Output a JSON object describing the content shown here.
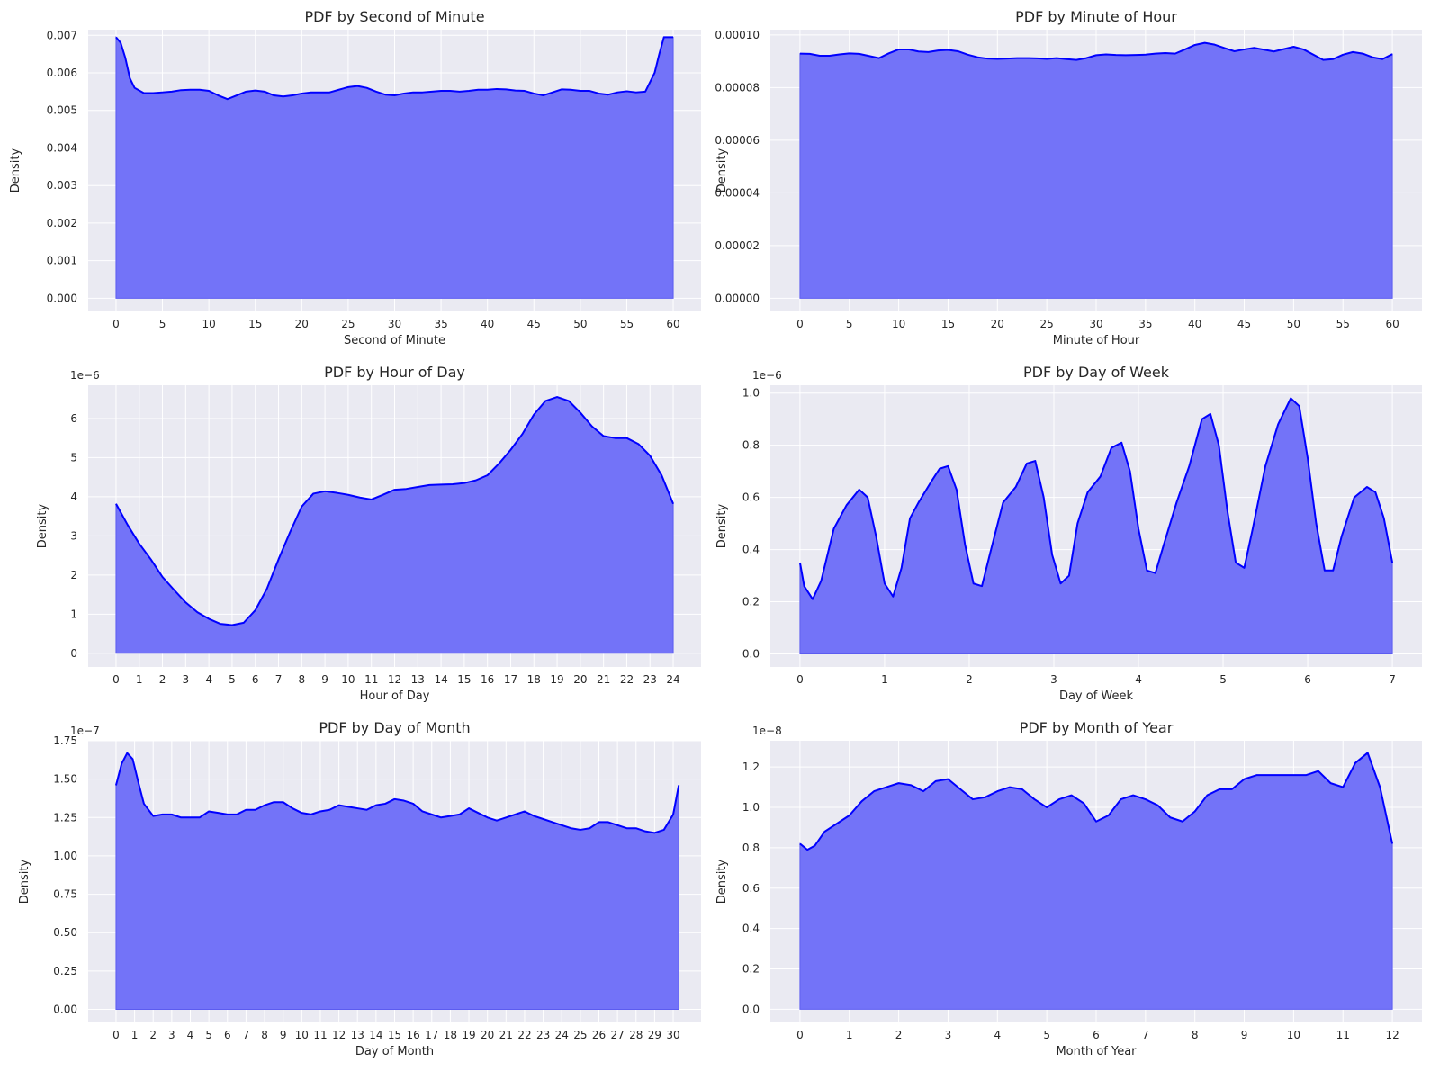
{
  "colors": {
    "line": "#0000ff",
    "fill": "#7373f8",
    "panel_bg": "#eaeaf2",
    "grid": "#ffffff",
    "text": "#262626"
  },
  "chart_data": [
    {
      "type": "area",
      "title": "PDF by Second of Minute",
      "xlabel": "Second of Minute",
      "ylabel": "Density",
      "offset_label": "",
      "xlim": [
        -3,
        63
      ],
      "ylim": [
        -0.00035,
        0.00715
      ],
      "xticks": [
        0,
        5,
        10,
        15,
        20,
        25,
        30,
        35,
        40,
        45,
        50,
        55,
        60
      ],
      "yticks": [
        0,
        0.001,
        0.002,
        0.003,
        0.004,
        0.005,
        0.006,
        0.007
      ],
      "ytick_labels": [
        "0.000",
        "0.001",
        "0.002",
        "0.003",
        "0.004",
        "0.005",
        "0.006",
        "0.007"
      ],
      "grid": true,
      "x": [
        0,
        0.5,
        1,
        1.5,
        2,
        3,
        4,
        5,
        6,
        7,
        8,
        9,
        10,
        11,
        12,
        13,
        14,
        15,
        16,
        17,
        18,
        19,
        20,
        21,
        22,
        23,
        24,
        25,
        26,
        27,
        28,
        29,
        30,
        31,
        32,
        33,
        34,
        35,
        36,
        37,
        38,
        39,
        40,
        41,
        42,
        43,
        44,
        45,
        46,
        47,
        48,
        49,
        50,
        51,
        52,
        53,
        54,
        55,
        56,
        57,
        58,
        58.5,
        59,
        59.5,
        60
      ],
      "y": [
        0.00695,
        0.0068,
        0.0064,
        0.00585,
        0.0056,
        0.00546,
        0.00546,
        0.00548,
        0.0055,
        0.00554,
        0.00555,
        0.00555,
        0.00552,
        0.0054,
        0.0053,
        0.0054,
        0.0055,
        0.00553,
        0.0055,
        0.0054,
        0.00537,
        0.0054,
        0.00545,
        0.00548,
        0.00548,
        0.00548,
        0.00555,
        0.00562,
        0.00565,
        0.0056,
        0.0055,
        0.00542,
        0.0054,
        0.00545,
        0.00548,
        0.00548,
        0.0055,
        0.00552,
        0.00552,
        0.0055,
        0.00552,
        0.00555,
        0.00555,
        0.00557,
        0.00556,
        0.00553,
        0.00552,
        0.00545,
        0.0054,
        0.00548,
        0.00556,
        0.00555,
        0.00552,
        0.00552,
        0.00545,
        0.00542,
        0.00548,
        0.00551,
        0.00548,
        0.0055,
        0.006,
        0.0065,
        0.00695,
        0.00695,
        0.00695
      ]
    },
    {
      "type": "area",
      "title": "PDF by Minute of Hour",
      "xlabel": "Minute of Hour",
      "ylabel": "Density",
      "offset_label": "",
      "xlim": [
        -3,
        63
      ],
      "ylim": [
        -5e-06,
        0.000102
      ],
      "xticks": [
        0,
        5,
        10,
        15,
        20,
        25,
        30,
        35,
        40,
        45,
        50,
        55,
        60
      ],
      "yticks": [
        0,
        2e-05,
        4e-05,
        6e-05,
        8e-05,
        0.0001
      ],
      "ytick_labels": [
        "0.00000",
        "0.00002",
        "0.00004",
        "0.00006",
        "0.00008",
        "0.00010"
      ],
      "grid": true,
      "x": [
        0,
        1,
        2,
        3,
        4,
        5,
        6,
        7,
        8,
        9,
        10,
        11,
        12,
        13,
        14,
        15,
        16,
        17,
        18,
        19,
        20,
        21,
        22,
        23,
        24,
        25,
        26,
        27,
        28,
        29,
        30,
        31,
        32,
        33,
        34,
        35,
        36,
        37,
        38,
        39,
        40,
        41,
        42,
        43,
        44,
        45,
        46,
        47,
        48,
        49,
        50,
        51,
        52,
        53,
        54,
        55,
        56,
        57,
        58,
        59,
        60
      ],
      "y": [
        9.29e-05,
        9.28e-05,
        9.21e-05,
        9.21e-05,
        9.26e-05,
        9.3e-05,
        9.28e-05,
        9.2e-05,
        9.12e-05,
        9.3e-05,
        9.45e-05,
        9.45e-05,
        9.37e-05,
        9.35e-05,
        9.41e-05,
        9.43e-05,
        9.38e-05,
        9.25e-05,
        9.15e-05,
        9.1e-05,
        9.09e-05,
        9.1e-05,
        9.12e-05,
        9.12e-05,
        9.11e-05,
        9.09e-05,
        9.12e-05,
        9.08e-05,
        9.05e-05,
        9.12e-05,
        9.23e-05,
        9.26e-05,
        9.24e-05,
        9.23e-05,
        9.24e-05,
        9.25e-05,
        9.29e-05,
        9.31e-05,
        9.29e-05,
        9.45e-05,
        9.62e-05,
        9.7e-05,
        9.63e-05,
        9.5e-05,
        9.38e-05,
        9.45e-05,
        9.51e-05,
        9.44e-05,
        9.37e-05,
        9.46e-05,
        9.55e-05,
        9.45e-05,
        9.25e-05,
        9.05e-05,
        9.08e-05,
        9.25e-05,
        9.35e-05,
        9.29e-05,
        9.15e-05,
        9.08e-05,
        9.27e-05
      ]
    },
    {
      "type": "area",
      "title": "PDF by Hour of Day",
      "xlabel": "Hour of Day",
      "ylabel": "Density",
      "offset_label": "1e−6",
      "xlim": [
        -1.2,
        25.2
      ],
      "ylim": [
        -0.35,
        6.85
      ],
      "xticks": [
        0,
        1,
        2,
        3,
        4,
        5,
        6,
        7,
        8,
        9,
        10,
        11,
        12,
        13,
        14,
        15,
        16,
        17,
        18,
        19,
        20,
        21,
        22,
        23,
        24
      ],
      "yticks": [
        0,
        1,
        2,
        3,
        4,
        5,
        6
      ],
      "ytick_labels": [
        "0",
        "1",
        "2",
        "3",
        "4",
        "5",
        "6"
      ],
      "grid": true,
      "x": [
        0,
        0.5,
        1,
        1.5,
        2,
        2.5,
        3,
        3.5,
        4,
        4.5,
        5,
        5.5,
        6,
        6.5,
        7,
        7.5,
        8,
        8.5,
        9,
        9.5,
        10,
        10.5,
        11,
        11.5,
        12,
        12.5,
        13,
        13.5,
        14,
        14.5,
        15,
        15.5,
        16,
        16.5,
        17,
        17.5,
        18,
        18.5,
        19,
        19.5,
        20,
        20.5,
        21,
        21.5,
        22,
        22.5,
        23,
        23.5,
        24
      ],
      "y": [
        3.82,
        3.28,
        2.8,
        2.4,
        1.95,
        1.62,
        1.3,
        1.05,
        0.88,
        0.75,
        0.72,
        0.78,
        1.1,
        1.65,
        2.4,
        3.1,
        3.75,
        4.08,
        4.14,
        4.1,
        4.05,
        3.98,
        3.93,
        4.05,
        4.18,
        4.2,
        4.25,
        4.3,
        4.31,
        4.32,
        4.35,
        4.42,
        4.55,
        4.85,
        5.2,
        5.6,
        6.1,
        6.45,
        6.55,
        6.45,
        6.15,
        5.8,
        5.55,
        5.5,
        5.5,
        5.35,
        5.05,
        4.55,
        3.82
      ]
    },
    {
      "type": "area",
      "title": "PDF by Day of Week",
      "xlabel": "Day of Week",
      "ylabel": "Density",
      "offset_label": "1e−6",
      "xlim": [
        -0.35,
        7.35
      ],
      "ylim": [
        -0.05,
        1.03
      ],
      "xticks": [
        0,
        1,
        2,
        3,
        4,
        5,
        6,
        7
      ],
      "yticks": [
        0,
        0.2,
        0.4,
        0.6,
        0.8,
        1.0
      ],
      "ytick_labels": [
        "0.0",
        "0.2",
        "0.4",
        "0.6",
        "0.8",
        "1.0"
      ],
      "grid": true,
      "x": [
        0,
        0.05,
        0.15,
        0.25,
        0.4,
        0.55,
        0.7,
        0.8,
        0.9,
        1.0,
        1.1,
        1.2,
        1.3,
        1.4,
        1.55,
        1.65,
        1.75,
        1.85,
        1.95,
        2.05,
        2.15,
        2.25,
        2.4,
        2.55,
        2.68,
        2.78,
        2.88,
        2.98,
        3.08,
        3.18,
        3.28,
        3.4,
        3.55,
        3.68,
        3.8,
        3.9,
        4.0,
        4.1,
        4.2,
        4.3,
        4.45,
        4.6,
        4.75,
        4.85,
        4.95,
        5.05,
        5.15,
        5.25,
        5.35,
        5.5,
        5.65,
        5.8,
        5.9,
        6.0,
        6.1,
        6.2,
        6.3,
        6.4,
        6.55,
        6.7,
        6.8,
        6.9,
        7.0
      ],
      "y": [
        0.35,
        0.26,
        0.21,
        0.28,
        0.48,
        0.57,
        0.63,
        0.6,
        0.45,
        0.27,
        0.22,
        0.33,
        0.52,
        0.58,
        0.66,
        0.71,
        0.72,
        0.63,
        0.42,
        0.27,
        0.26,
        0.39,
        0.58,
        0.64,
        0.73,
        0.74,
        0.6,
        0.38,
        0.27,
        0.3,
        0.5,
        0.62,
        0.68,
        0.79,
        0.81,
        0.7,
        0.48,
        0.32,
        0.31,
        0.42,
        0.58,
        0.72,
        0.9,
        0.92,
        0.8,
        0.55,
        0.35,
        0.33,
        0.48,
        0.72,
        0.88,
        0.98,
        0.95,
        0.75,
        0.5,
        0.32,
        0.32,
        0.45,
        0.6,
        0.64,
        0.62,
        0.52,
        0.35
      ]
    },
    {
      "type": "area",
      "title": "PDF by Day of Month",
      "xlabel": "Day of Month",
      "ylabel": "Density",
      "offset_label": "1e−7",
      "xlim": [
        -1.5,
        31.5
      ],
      "ylim": [
        -0.085,
        1.75
      ],
      "xticks": [
        0,
        1,
        2,
        3,
        4,
        5,
        6,
        7,
        8,
        9,
        10,
        11,
        12,
        13,
        14,
        15,
        16,
        17,
        18,
        19,
        20,
        21,
        22,
        23,
        24,
        25,
        26,
        27,
        28,
        29,
        30
      ],
      "yticks": [
        0,
        0.25,
        0.5,
        0.75,
        1.0,
        1.25,
        1.5,
        1.75
      ],
      "ytick_labels": [
        "0.00",
        "0.25",
        "0.50",
        "0.75",
        "1.00",
        "1.25",
        "1.50",
        "1.75"
      ],
      "grid": true,
      "x": [
        0,
        0.3,
        0.6,
        0.9,
        1.2,
        1.5,
        2,
        2.5,
        3,
        3.5,
        4,
        4.5,
        5,
        5.5,
        6,
        6.5,
        7,
        7.5,
        8,
        8.5,
        9,
        9.5,
        10,
        10.5,
        11,
        11.5,
        12,
        12.5,
        13,
        13.5,
        14,
        14.5,
        15,
        15.5,
        16,
        16.5,
        17,
        17.5,
        18,
        18.5,
        19,
        19.5,
        20,
        20.5,
        21,
        21.5,
        22,
        22.5,
        23,
        23.5,
        24,
        24.5,
        25,
        25.5,
        26,
        26.5,
        27,
        27.5,
        28,
        28.5,
        29,
        29.5,
        30,
        30.3
      ],
      "y": [
        1.46,
        1.6,
        1.67,
        1.63,
        1.48,
        1.34,
        1.26,
        1.27,
        1.27,
        1.25,
        1.25,
        1.25,
        1.29,
        1.28,
        1.27,
        1.27,
        1.3,
        1.3,
        1.33,
        1.35,
        1.35,
        1.31,
        1.28,
        1.27,
        1.29,
        1.3,
        1.33,
        1.32,
        1.31,
        1.3,
        1.33,
        1.34,
        1.37,
        1.36,
        1.34,
        1.29,
        1.27,
        1.25,
        1.26,
        1.27,
        1.31,
        1.28,
        1.25,
        1.23,
        1.25,
        1.27,
        1.29,
        1.26,
        1.24,
        1.22,
        1.2,
        1.18,
        1.17,
        1.18,
        1.22,
        1.22,
        1.2,
        1.18,
        1.18,
        1.16,
        1.15,
        1.17,
        1.27,
        1.46
      ]
    },
    {
      "type": "area",
      "title": "PDF by Month of Year",
      "xlabel": "Month of Year",
      "ylabel": "Density",
      "offset_label": "1e−8",
      "xlim": [
        -0.6,
        12.6
      ],
      "ylim": [
        -0.065,
        1.33
      ],
      "xticks": [
        0,
        1,
        2,
        3,
        4,
        5,
        6,
        7,
        8,
        9,
        10,
        11,
        12
      ],
      "yticks": [
        0,
        0.2,
        0.4,
        0.6,
        0.8,
        1.0,
        1.2
      ],
      "ytick_labels": [
        "0.0",
        "0.2",
        "0.4",
        "0.6",
        "0.8",
        "1.0",
        "1.2"
      ],
      "grid": true,
      "x": [
        0,
        0.15,
        0.3,
        0.5,
        0.75,
        1,
        1.25,
        1.5,
        1.75,
        2,
        2.25,
        2.5,
        2.75,
        3,
        3.25,
        3.5,
        3.75,
        4,
        4.25,
        4.5,
        4.75,
        5,
        5.25,
        5.5,
        5.75,
        6,
        6.25,
        6.5,
        6.75,
        7,
        7.25,
        7.5,
        7.75,
        8,
        8.25,
        8.5,
        8.75,
        9,
        9.25,
        9.5,
        9.75,
        10,
        10.25,
        10.5,
        10.75,
        11,
        11.25,
        11.5,
        11.75,
        12
      ],
      "y": [
        0.82,
        0.79,
        0.81,
        0.88,
        0.92,
        0.96,
        1.03,
        1.08,
        1.1,
        1.12,
        1.11,
        1.08,
        1.13,
        1.14,
        1.09,
        1.04,
        1.05,
        1.08,
        1.1,
        1.09,
        1.04,
        1.0,
        1.04,
        1.06,
        1.02,
        0.93,
        0.96,
        1.04,
        1.06,
        1.04,
        1.01,
        0.95,
        0.93,
        0.98,
        1.06,
        1.09,
        1.09,
        1.14,
        1.16,
        1.16,
        1.16,
        1.16,
        1.16,
        1.18,
        1.12,
        1.1,
        1.22,
        1.27,
        1.1,
        0.82
      ]
    }
  ]
}
